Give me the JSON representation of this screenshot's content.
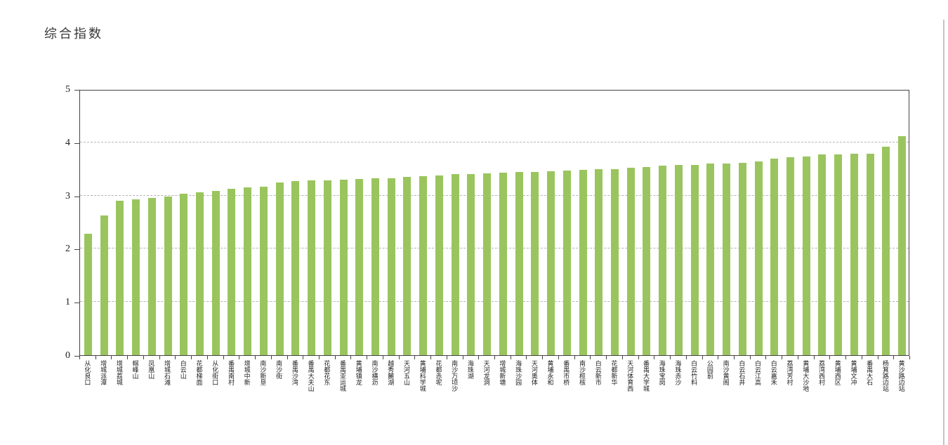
{
  "page": {
    "title": "综合指数"
  },
  "chart_data": {
    "type": "bar",
    "title": "综合指数",
    "xlabel": "",
    "ylabel": "",
    "ylim": [
      0,
      5
    ],
    "yticks": [
      0,
      1,
      2,
      3,
      4,
      5
    ],
    "grid": "horizontal dashed gridlines at 1,2,3,4",
    "legend": "none",
    "bar_color": "#9ac55e",
    "frame_color": "#444444",
    "categories": [
      "从化良口",
      "增城派潭",
      "增城荔城",
      "帽峰山",
      "凤凰山",
      "增城石滩",
      "白云山",
      "花都梯面",
      "从化街口",
      "番禺南村",
      "增城中新",
      "南沙新垦",
      "南沙街",
      "番禺沙湾",
      "番禺大夫山",
      "花都花东",
      "番禺亚运城",
      "黄埔镇龙",
      "南沙横沥",
      "越秀麓湖",
      "天河五山",
      "黄埔科学城",
      "花都赤坭",
      "南沙万顷沙",
      "海珠湖",
      "天河龙洞",
      "增城新塘",
      "海珠沙园",
      "天河奥体",
      "黄埔永和",
      "番禺市桥",
      "南沙榄核",
      "白云新市",
      "花都新华",
      "天河体育西",
      "番禺大学城",
      "海珠宝岗",
      "海珠赤沙",
      "白云竹料",
      "公园前",
      "南沙黄阁",
      "白云石井",
      "白云江高",
      "白云嘉禾",
      "荔湾芳村",
      "黄埔大沙地",
      "荔湾西村",
      "黄埔西区",
      "黄埔文冲",
      "番禺大石",
      "杨箕路边站",
      "黄沙路边站"
    ],
    "values": [
      2.28,
      2.62,
      2.9,
      2.93,
      2.96,
      2.98,
      3.03,
      3.06,
      3.09,
      3.13,
      3.15,
      3.17,
      3.25,
      3.27,
      3.28,
      3.29,
      3.3,
      3.31,
      3.32,
      3.33,
      3.35,
      3.37,
      3.38,
      3.4,
      3.41,
      3.42,
      3.43,
      3.44,
      3.45,
      3.46,
      3.47,
      3.48,
      3.49,
      3.5,
      3.52,
      3.54,
      3.56,
      3.57,
      3.58,
      3.6,
      3.6,
      3.61,
      3.64,
      3.69,
      3.72,
      3.74,
      3.77,
      3.77,
      3.78,
      3.78,
      3.92,
      4.12
    ]
  }
}
